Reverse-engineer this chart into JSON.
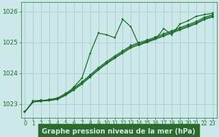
{
  "bg_color": "#cce8e8",
  "grid_color": "#aacccc",
  "line_color": "#1a6b2a",
  "xlabel": "Graphe pression niveau de la mer (hPa)",
  "xlabel_fontsize": 7.2,
  "ylabel_fontsize": 6.5,
  "tick_fontsize": 5.5,
  "xlim": [
    -0.5,
    23.5
  ],
  "ylim": [
    1022.55,
    1026.3
  ],
  "yticks": [
    1023,
    1024,
    1025,
    1026
  ],
  "xticks": [
    0,
    1,
    2,
    3,
    4,
    5,
    6,
    7,
    8,
    9,
    10,
    11,
    12,
    13,
    14,
    15,
    16,
    17,
    18,
    19,
    20,
    21,
    22,
    23
  ],
  "xlabel_bg": "#2d6b2d",
  "xlabel_fg": "#cce8e8",
  "series_main": [
    1022.75,
    1023.1,
    1023.12,
    1023.12,
    1023.15,
    1023.3,
    1023.55,
    1023.85,
    1024.65,
    1025.3,
    1025.25,
    1025.15,
    1025.75,
    1025.5,
    1024.9,
    1025.05,
    1025.1,
    1025.45,
    1025.25,
    1025.6,
    1025.7,
    1025.85,
    1025.9,
    1025.95
  ],
  "series_linear": [
    [
      1022.75,
      1023.07,
      1023.1,
      1023.15,
      1023.2,
      1023.35,
      1023.52,
      1023.72,
      1023.95,
      1024.18,
      1024.38,
      1024.56,
      1024.73,
      1024.9,
      1025.0,
      1025.08,
      1025.18,
      1025.28,
      1025.38,
      1025.48,
      1025.58,
      1025.68,
      1025.82,
      1025.9
    ],
    [
      1022.75,
      1023.07,
      1023.1,
      1023.13,
      1023.18,
      1023.32,
      1023.5,
      1023.7,
      1023.92,
      1024.15,
      1024.35,
      1024.53,
      1024.7,
      1024.87,
      1024.97,
      1025.05,
      1025.15,
      1025.25,
      1025.35,
      1025.45,
      1025.55,
      1025.65,
      1025.79,
      1025.87
    ],
    [
      1022.75,
      1023.06,
      1023.09,
      1023.12,
      1023.16,
      1023.3,
      1023.47,
      1023.67,
      1023.89,
      1024.12,
      1024.32,
      1024.5,
      1024.67,
      1024.84,
      1024.94,
      1025.02,
      1025.12,
      1025.22,
      1025.32,
      1025.42,
      1025.52,
      1025.62,
      1025.76,
      1025.84
    ],
    [
      1022.75,
      1023.06,
      1023.09,
      1023.11,
      1023.15,
      1023.28,
      1023.45,
      1023.65,
      1023.87,
      1024.1,
      1024.3,
      1024.48,
      1024.65,
      1024.82,
      1024.92,
      1025.0,
      1025.1,
      1025.2,
      1025.3,
      1025.4,
      1025.5,
      1025.6,
      1025.74,
      1025.82
    ]
  ]
}
